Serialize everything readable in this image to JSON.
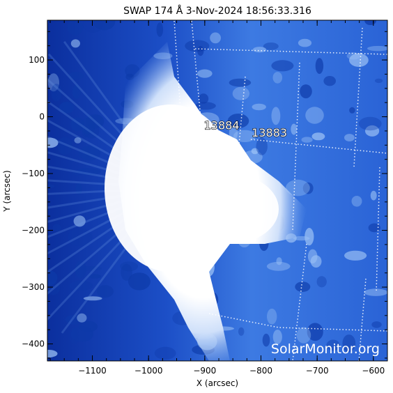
{
  "title": "SWAP 174 Å  3-Nov-2024 18:56:33.316",
  "x_axis": {
    "label": "X (arcsec)",
    "range": [
      -1180,
      -575
    ],
    "ticks": [
      {
        "value": -1100,
        "label": "−1100"
      },
      {
        "value": -1000,
        "label": "−1000"
      },
      {
        "value": -900,
        "label": "−900"
      },
      {
        "value": -800,
        "label": "−800"
      },
      {
        "value": -700,
        "label": "−700"
      },
      {
        "value": -600,
        "label": "−600"
      }
    ]
  },
  "y_axis": {
    "label": "Y (arcsec)",
    "range": [
      -430,
      170
    ],
    "ticks": [
      {
        "value": 100,
        "label": "100"
      },
      {
        "value": 0,
        "label": "0"
      },
      {
        "value": -100,
        "label": "−100"
      },
      {
        "value": -200,
        "label": "−200"
      },
      {
        "value": -300,
        "label": "−300"
      },
      {
        "value": -400,
        "label": "−400"
      }
    ]
  },
  "active_regions": [
    {
      "label": "13884",
      "x": -870,
      "y": -22
    },
    {
      "label": "13883",
      "x": -785,
      "y": -35
    }
  ],
  "watermark": "SolarMonitor.org",
  "colors": {
    "dark_blue": "#0a2d9c",
    "mid_blue": "#2f6fe0",
    "light_blue": "#9cc2f5",
    "saturated": "#ffffff"
  }
}
